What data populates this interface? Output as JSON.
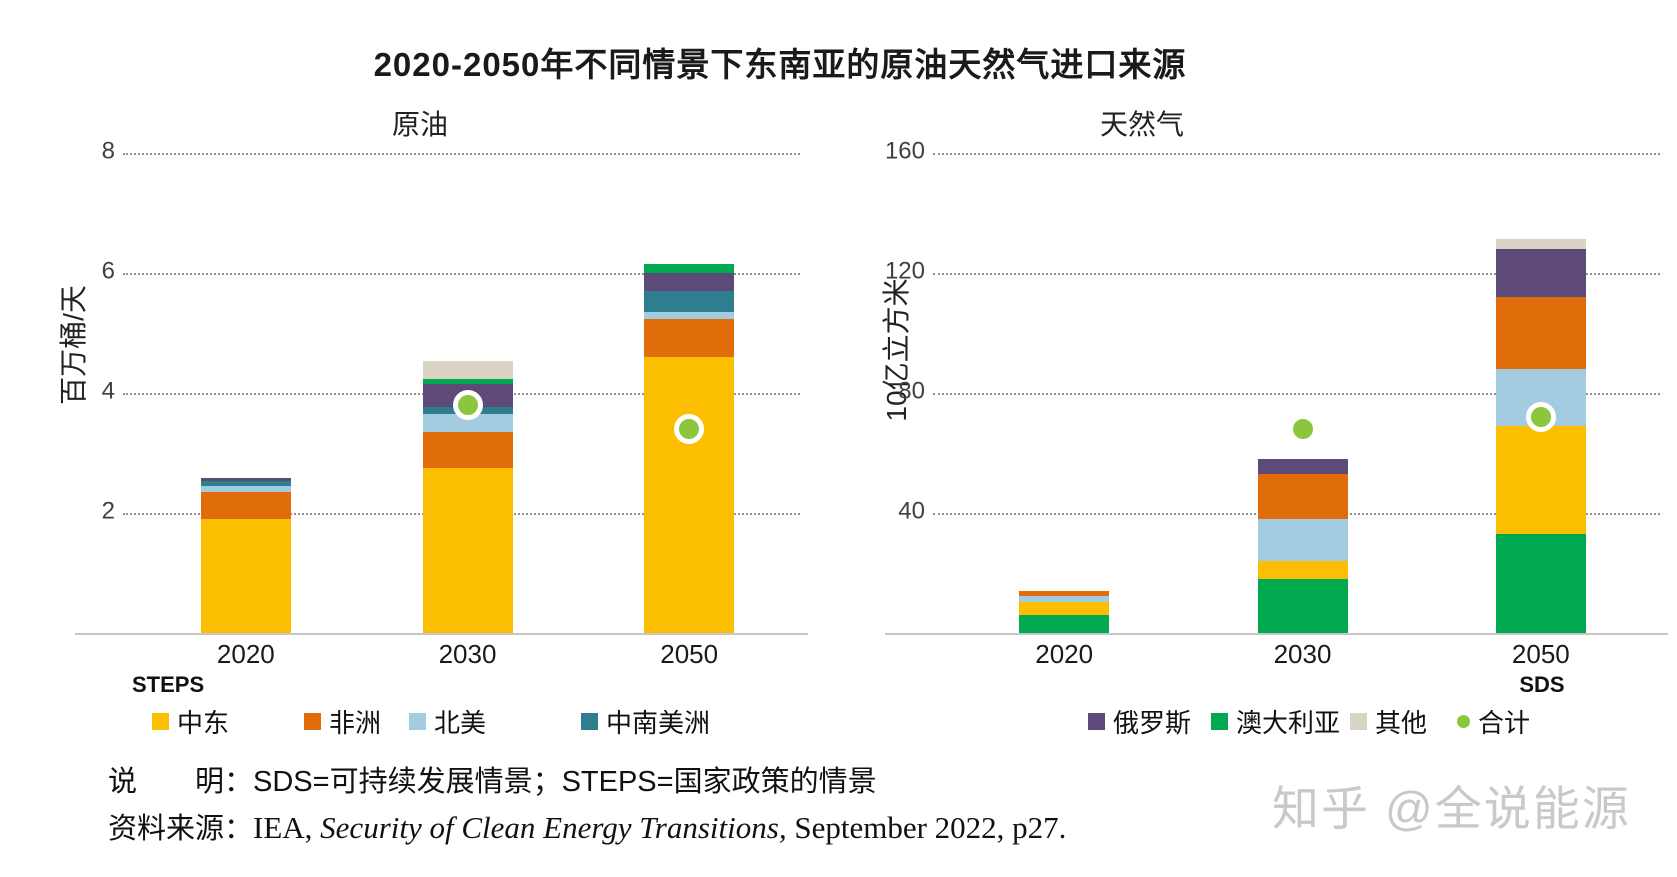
{
  "title": "2020-2050年不同情景下东南亚的原油天然气进口来源",
  "watermark": "知乎 @全说能源",
  "notes": {
    "line1": "说　　明：SDS=可持续发展情景；STEPS=国家政策的情景",
    "line2_prefix_cn": "资料来源：",
    "line2_prefix_en": "IEA, ",
    "line2_italic": "Security of Clean Energy Transitions,",
    "line2_suffix": " September 2022, p27."
  },
  "legends": {
    "left": [
      {
        "label": "中东",
        "color": "#FCBE00",
        "marker": "square"
      },
      {
        "label": "非洲",
        "color": "#E06C0A",
        "marker": "square"
      },
      {
        "label": "北美",
        "color": "#A3CCE0",
        "marker": "square"
      },
      {
        "label": "中南美洲",
        "color": "#2F7E8F",
        "marker": "square"
      }
    ],
    "right": [
      {
        "label": "俄罗斯",
        "color": "#5D4A78",
        "marker": "square"
      },
      {
        "label": "澳大利亚",
        "color": "#00A94F",
        "marker": "square"
      },
      {
        "label": "其他",
        "color": "#D8D3C5",
        "marker": "square"
      },
      {
        "label": "合计",
        "color": "#8CC63F",
        "marker": "dot"
      }
    ]
  },
  "chart_data": [
    {
      "type": "bar",
      "stacked": true,
      "title": "原油",
      "ylabel": "百万桶/天",
      "scenario_label": "STEPS",
      "legend_position": "bottom",
      "grid": true,
      "ylim": [
        0,
        8
      ],
      "yticks": [
        2,
        4,
        6,
        8
      ],
      "categories": [
        "2020",
        "2030",
        "2050"
      ],
      "series": [
        {
          "name": "中东",
          "color": "#FCBE00",
          "values": [
            1.9,
            2.75,
            4.6
          ]
        },
        {
          "name": "非洲",
          "color": "#E06C0A",
          "values": [
            0.45,
            0.6,
            0.63
          ]
        },
        {
          "name": "北美",
          "color": "#A3CCE0",
          "values": [
            0.1,
            0.3,
            0.12
          ]
        },
        {
          "name": "中南美洲",
          "color": "#2F7E8F",
          "values": [
            0.08,
            0.12,
            0.35
          ]
        },
        {
          "name": "俄罗斯",
          "color": "#5D4A78",
          "values": [
            0.05,
            0.38,
            0.3
          ]
        },
        {
          "name": "澳大利亚",
          "color": "#00A94F",
          "values": [
            0,
            0.08,
            0.15
          ]
        },
        {
          "name": "其他",
          "color": "#D8D3C5",
          "values": [
            0,
            0.3,
            0
          ]
        }
      ],
      "dots": {
        "name": "合计",
        "color": "#8CC63F",
        "values": [
          null,
          3.8,
          3.4
        ]
      }
    },
    {
      "type": "bar",
      "stacked": true,
      "title": "天然气",
      "ylabel": "10亿立方米",
      "scenario_label": "SDS",
      "legend_position": "bottom",
      "grid": true,
      "ylim": [
        0,
        160
      ],
      "yticks": [
        40,
        80,
        120,
        160
      ],
      "categories": [
        "2020",
        "2030",
        "2050"
      ],
      "series": [
        {
          "name": "澳大利亚",
          "color": "#00A94F",
          "values": [
            6,
            18,
            33
          ]
        },
        {
          "name": "中东",
          "color": "#FCBE00",
          "values": [
            4.5,
            6,
            36
          ]
        },
        {
          "name": "北美",
          "color": "#A3CCE0",
          "values": [
            2,
            14,
            19
          ]
        },
        {
          "name": "非洲",
          "color": "#E06C0A",
          "values": [
            1.5,
            15,
            24
          ]
        },
        {
          "name": "俄罗斯",
          "color": "#5D4A78",
          "values": [
            0,
            5,
            16
          ]
        },
        {
          "name": "其他",
          "color": "#D8D3C5",
          "values": [
            0,
            0,
            3.5
          ]
        }
      ],
      "dots": {
        "name": "合计",
        "color": "#8CC63F",
        "values": [
          null,
          68,
          72
        ]
      }
    }
  ]
}
